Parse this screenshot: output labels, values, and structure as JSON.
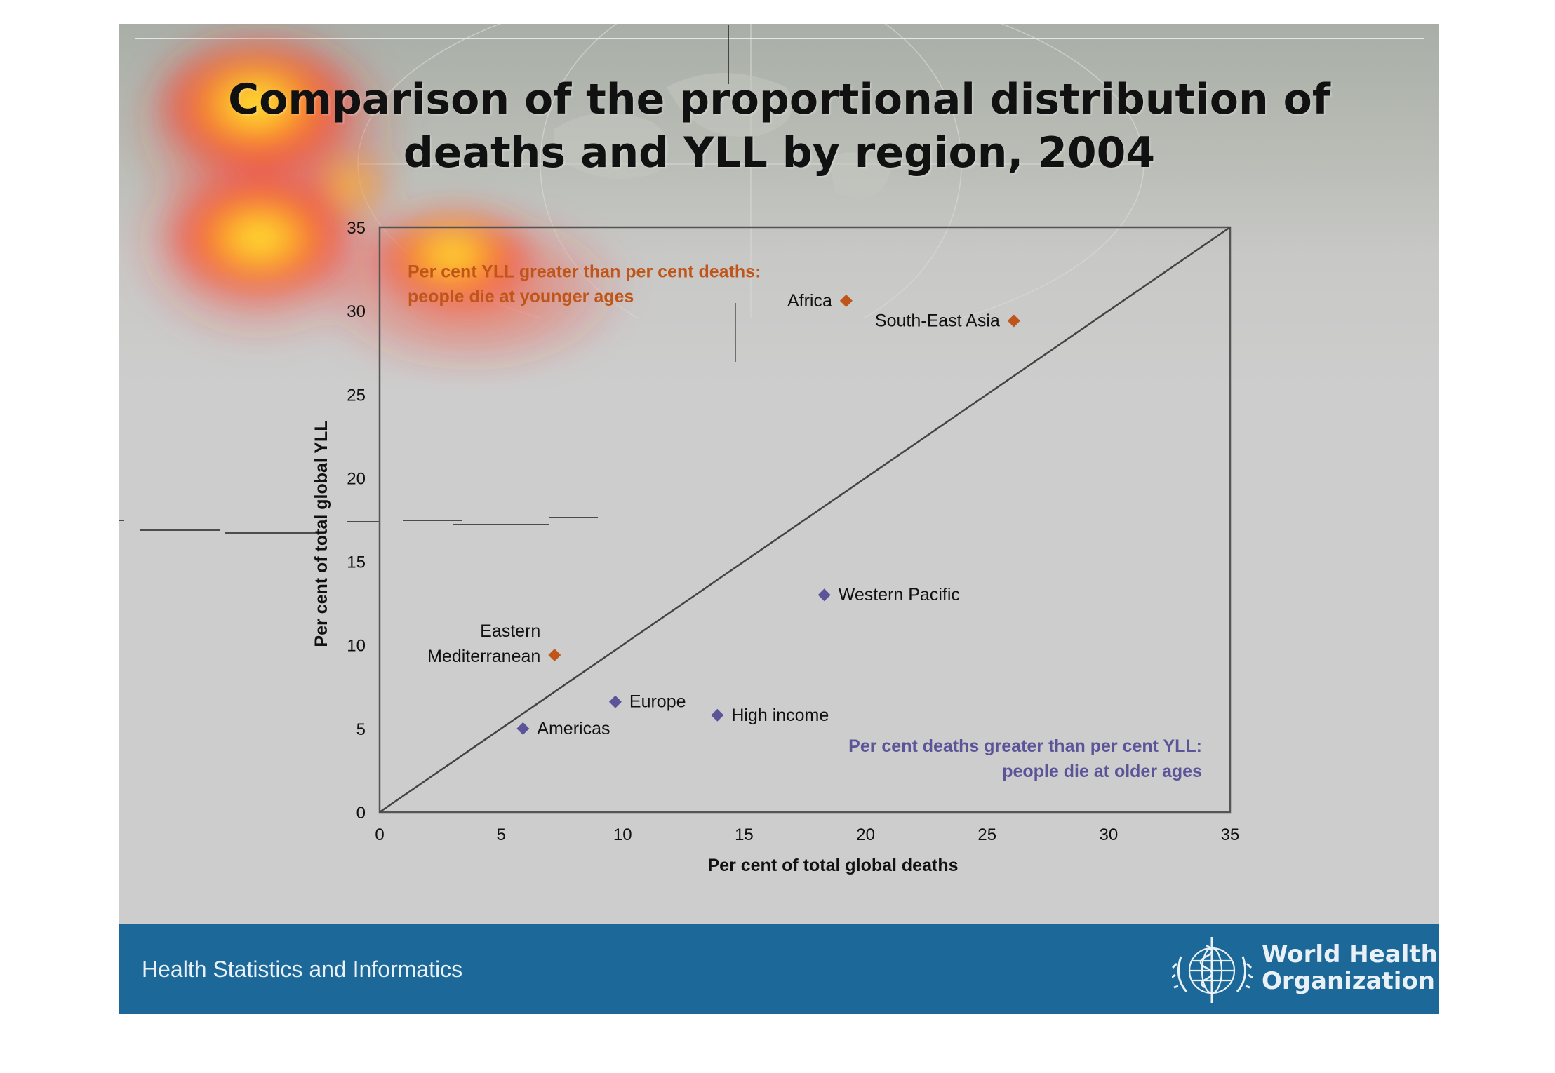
{
  "title_line1": "Comparison of the proportional distribution of",
  "title_line2": "deaths and YLL by region, 2004",
  "footer": {
    "left_text": "Health Statistics and Informatics",
    "org_line1": "World Health",
    "org_line2": "Organization",
    "bar_color": "#1b6899"
  },
  "colors": {
    "orange": "#c0551a",
    "purple": "#5b5499"
  },
  "chart_data": {
    "type": "scatter",
    "xlabel": "Per cent of total global deaths",
    "ylabel": "Per cent of total global YLL",
    "xlim": [
      0,
      35
    ],
    "ylim": [
      0,
      35
    ],
    "xticks": [
      0,
      5,
      10,
      15,
      20,
      25,
      30,
      35
    ],
    "yticks": [
      0,
      5,
      10,
      15,
      20,
      25,
      30,
      35
    ],
    "grid": false,
    "reference_line": "y = x",
    "points": [
      {
        "name": "Africa",
        "label_lines": [
          "Africa"
        ],
        "x": 19.2,
        "y": 30.6,
        "group": "above"
      },
      {
        "name": "South-East Asia",
        "label_lines": [
          "South-East Asia"
        ],
        "x": 26.1,
        "y": 29.4,
        "group": "above"
      },
      {
        "name": "Eastern Mediterranean",
        "label_lines": [
          "Eastern",
          "Mediterranean"
        ],
        "x": 7.2,
        "y": 9.4,
        "group": "above"
      },
      {
        "name": "Western Pacific",
        "label_lines": [
          "Western Pacific"
        ],
        "x": 18.3,
        "y": 13.0,
        "group": "below"
      },
      {
        "name": "Europe",
        "label_lines": [
          "Europe"
        ],
        "x": 9.7,
        "y": 6.6,
        "group": "below"
      },
      {
        "name": "High income",
        "label_lines": [
          "High income"
        ],
        "x": 13.9,
        "y": 5.8,
        "group": "below"
      },
      {
        "name": "Americas",
        "label_lines": [
          "Americas"
        ],
        "x": 5.9,
        "y": 5.0,
        "group": "below"
      }
    ],
    "annotations": {
      "above_line1": "Per cent YLL greater than per cent deaths:",
      "above_line2": "people die at younger ages",
      "below_line1": "Per cent deaths greater than per cent YLL:",
      "below_line2": "people die at older ages"
    }
  }
}
